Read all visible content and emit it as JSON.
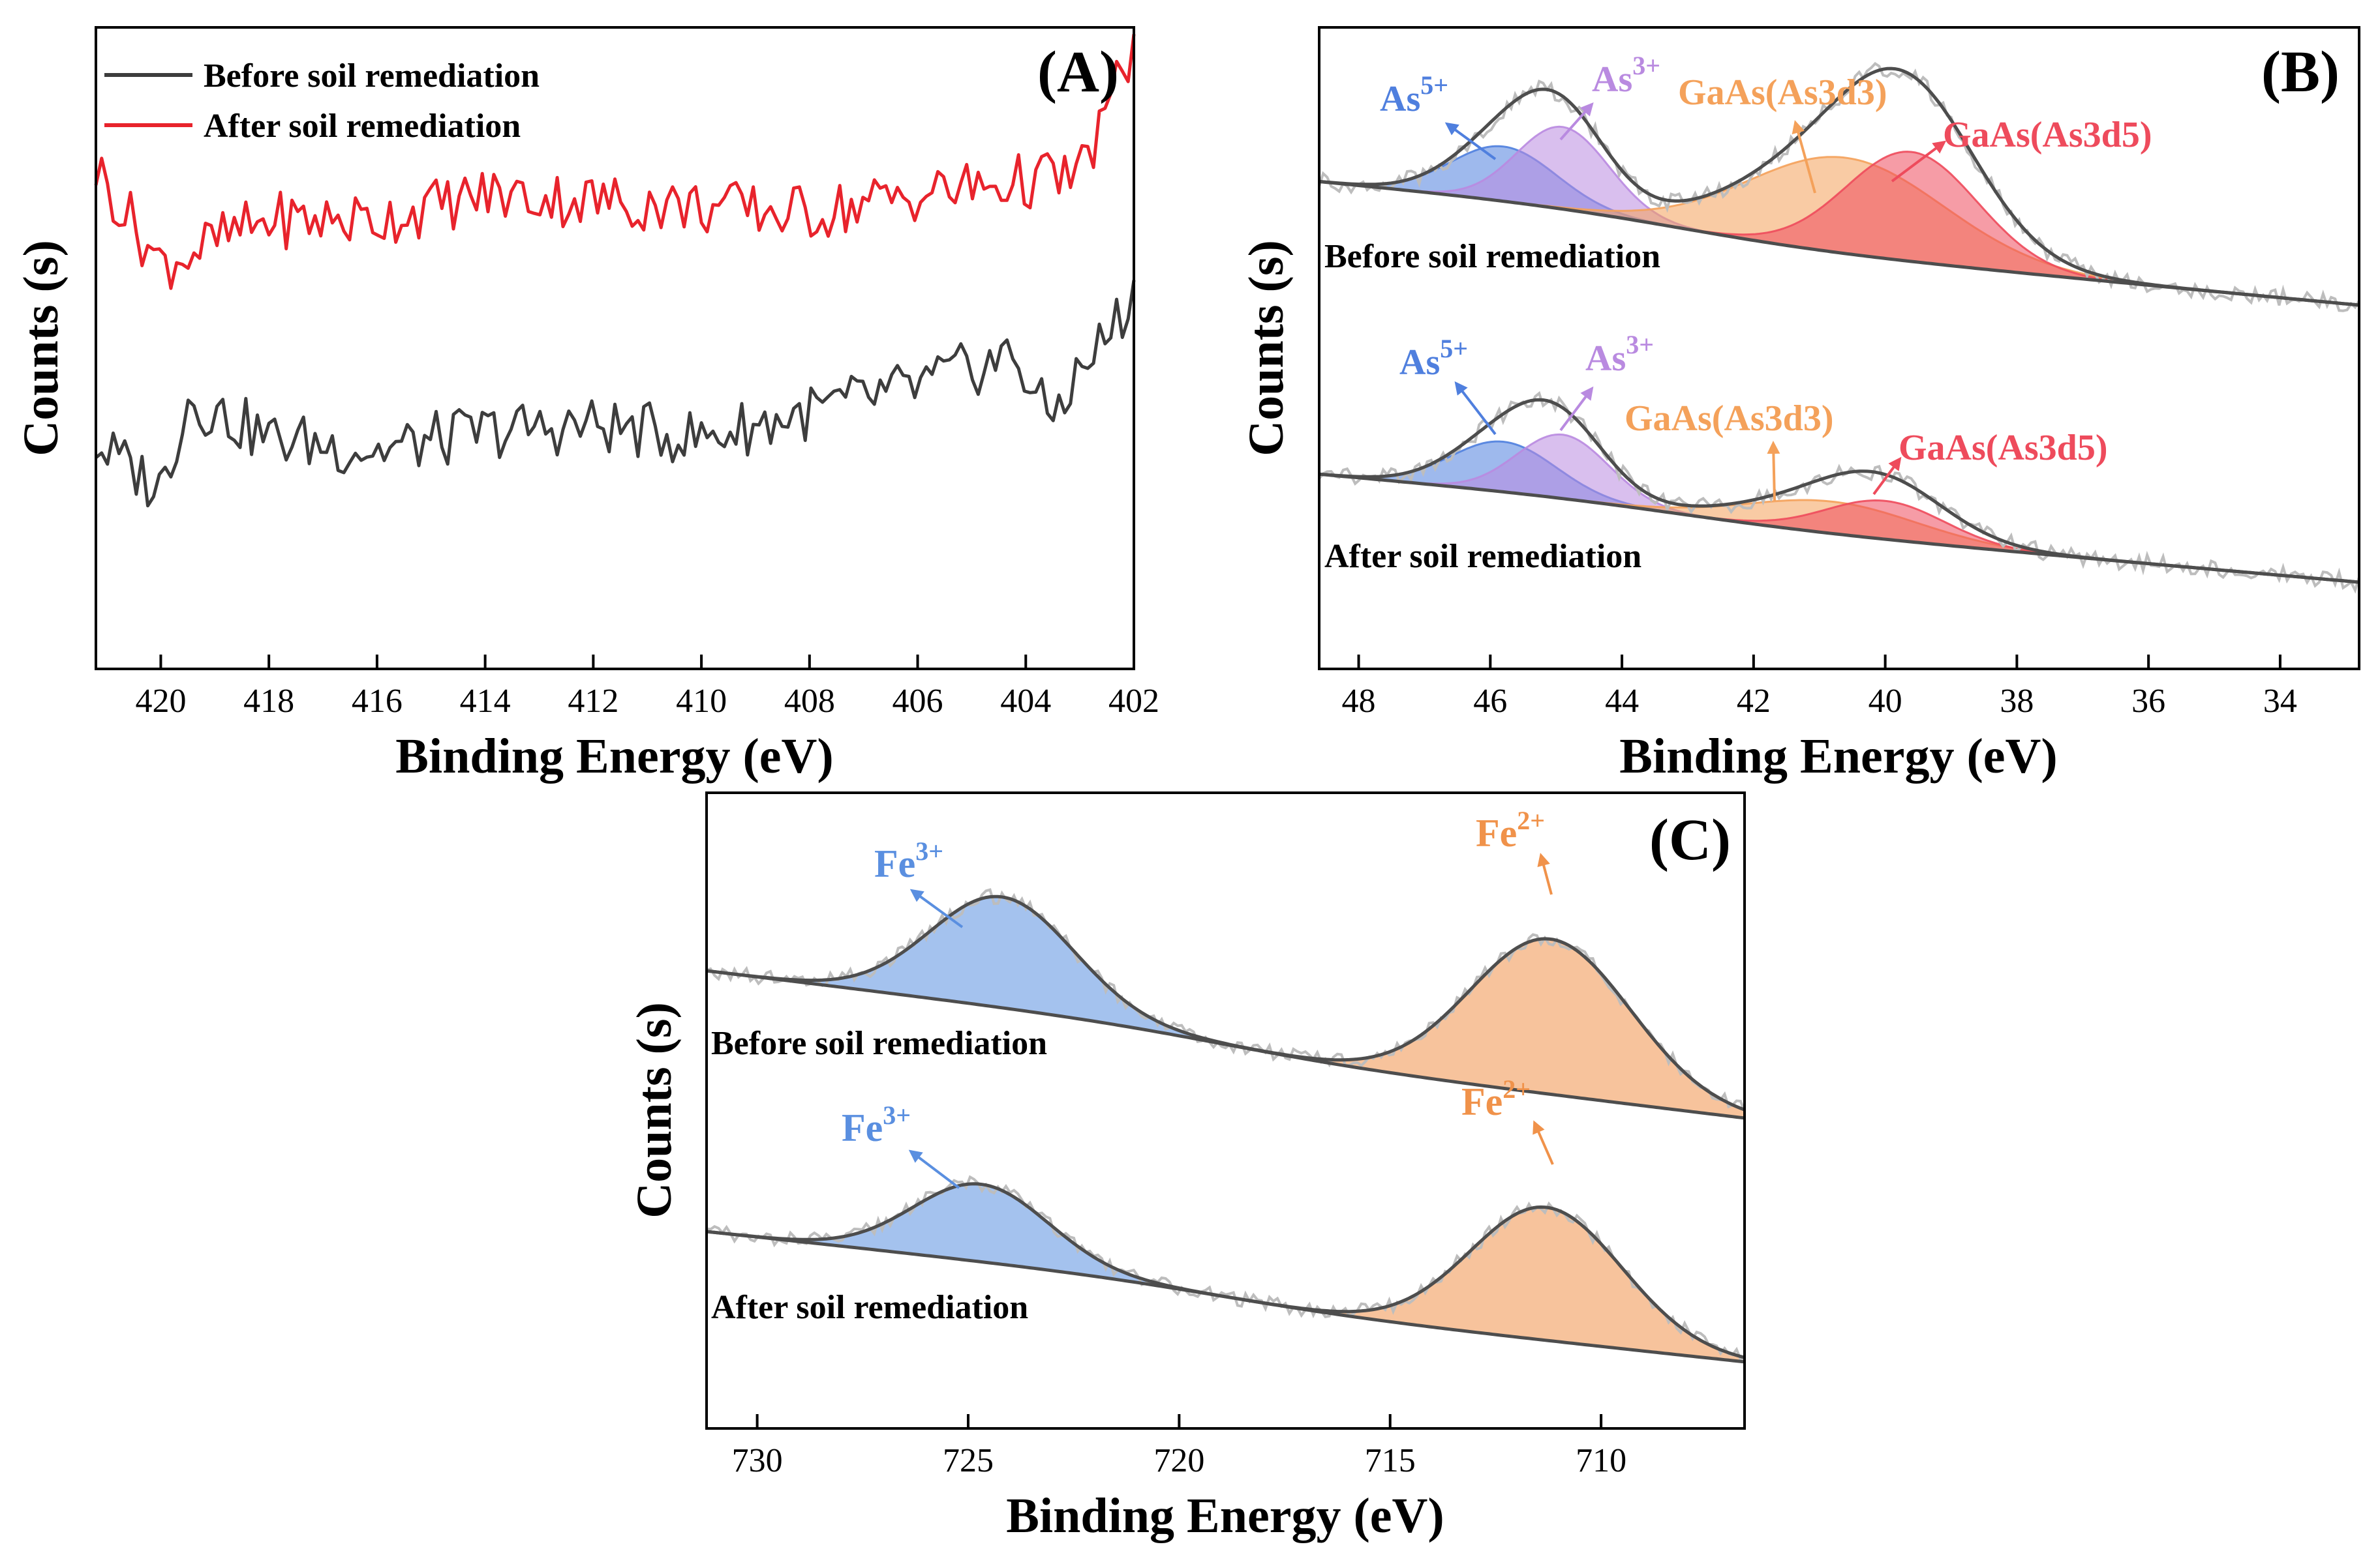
{
  "colors": {
    "before": "#3d3d3d",
    "after": "#e8232c",
    "as5": "#4f7fde",
    "as3": "#b98ae0",
    "as3d3": "#f4a15a",
    "as3d5": "#ee4b5c",
    "fe3": "#5a8fe0",
    "fe2": "#f0924a",
    "raw": "#bdbdbd",
    "envelope": "#4d4d4d"
  },
  "chart_data": [
    {
      "panel": "(A)",
      "type": "line",
      "xlabel": "Binding Energy (eV)",
      "ylabel": "Counts (s)",
      "xlim": [
        421.2,
        402
      ],
      "ylim": [
        0,
        100
      ],
      "xticks": [
        "420",
        "418",
        "416",
        "414",
        "412",
        "410",
        "408",
        "406",
        "404",
        "402"
      ],
      "legend": [
        "Before soil remediation",
        "After soil remediation"
      ],
      "legend_position": "top-left",
      "series": [
        {
          "name": "Before soil remediation",
          "x": [
            421.2,
            420.0,
            419.5,
            418.0,
            416.0,
            414.0,
            412.0,
            410.0,
            408.0,
            406.0,
            404.2,
            403.6,
            402.0
          ],
          "values": [
            35,
            28,
            42,
            36,
            34,
            37,
            38,
            36,
            40,
            44,
            49,
            39,
            58
          ]
        },
        {
          "name": "After soil remediation",
          "x": [
            421.2,
            420.0,
            418.0,
            416.0,
            414.0,
            412.0,
            410.0,
            408.0,
            406.0,
            404.0,
            403.0,
            402.0
          ],
          "values": [
            78,
            63,
            70,
            70,
            74,
            73,
            72,
            71,
            74,
            76,
            77,
            97
          ]
        }
      ]
    },
    {
      "panel": "(B)",
      "type": "area",
      "xlabel": "Binding Energy (eV)",
      "ylabel": "Counts (s)",
      "xlim": [
        48.6,
        32.8
      ],
      "xticks": [
        "48",
        "46",
        "44",
        "42",
        "40",
        "38",
        "36",
        "34"
      ],
      "samples": [
        {
          "label": "Before soil remediation",
          "peaks": [
            {
              "name": "As",
              "sup": "5+",
              "center": 45.8,
              "height": 6.0,
              "sigma": 0.8
            },
            {
              "name": "As",
              "sup": "3+",
              "center": 44.9,
              "height": 9.0,
              "sigma": 0.7
            },
            {
              "name": "GaAs(As3d3)",
              "center": 40.6,
              "height": 10.5,
              "sigma": 1.5
            },
            {
              "name": "GaAs(As3d5)",
              "center": 39.6,
              "height": 12.0,
              "sigma": 1.0
            }
          ]
        },
        {
          "label": "After soil remediation",
          "peaks": [
            {
              "name": "As",
              "sup": "5+",
              "center": 45.8,
              "height": 5.5,
              "sigma": 0.8
            },
            {
              "name": "As",
              "sup": "3+",
              "center": 44.9,
              "height": 7.0,
              "sigma": 0.7
            },
            {
              "name": "GaAs(As3d3)",
              "center": 40.8,
              "height": 3.5,
              "sigma": 1.3
            },
            {
              "name": "GaAs(As3d5)",
              "center": 40.0,
              "height": 4.2,
              "sigma": 0.9
            }
          ]
        }
      ]
    },
    {
      "panel": "(C)",
      "type": "area",
      "xlabel": "Binding Energy (eV)",
      "ylabel": "Counts (s)",
      "xlim": [
        731.2,
        706.6
      ],
      "xticks": [
        "730",
        "725",
        "720",
        "715",
        "710"
      ],
      "samples": [
        {
          "label": "Before soil remediation",
          "peaks": [
            {
              "name": "Fe",
              "sup": "3+",
              "center": 724.2,
              "height": 10.0,
              "sigma": 1.7
            },
            {
              "name": "Fe",
              "sup": "2+",
              "center": 711.2,
              "height": 14.0,
              "sigma": 1.9
            }
          ]
        },
        {
          "label": "After soil remediation",
          "peaks": [
            {
              "name": "Fe",
              "sup": "3+",
              "center": 724.7,
              "height": 7.0,
              "sigma": 1.6
            },
            {
              "name": "Fe",
              "sup": "2+",
              "center": 711.3,
              "height": 12.0,
              "sigma": 1.8
            }
          ]
        }
      ]
    }
  ]
}
